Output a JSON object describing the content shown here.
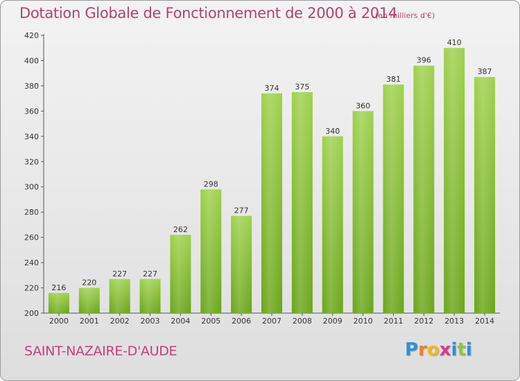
{
  "header": {
    "title": "Dotation Globale de Fonctionnement de 2000 à 2014",
    "subtitle": "(en milliers d'€)"
  },
  "footer": {
    "commune": "SAINT-NAZAIRE-D'AUDE",
    "logo_letters": [
      "P",
      "r",
      "o",
      "x",
      "i",
      "t",
      "i"
    ],
    "logo_colors": [
      "#2e8fd6",
      "#e9822b",
      "#f0b81f",
      "#d93a8e",
      "#2e8fd6",
      "#8cc63f",
      "#2e8fd6"
    ]
  },
  "chart_data": {
    "type": "bar",
    "title": "Dotation Globale de Fonctionnement de 2000 à 2014",
    "subtitle": "(en milliers d'€)",
    "categories": [
      "2000",
      "2001",
      "2002",
      "2003",
      "2004",
      "2005",
      "2006",
      "2007",
      "2008",
      "2009",
      "2010",
      "2011",
      "2012",
      "2013",
      "2014"
    ],
    "values": [
      216,
      220,
      227,
      227,
      262,
      298,
      277,
      374,
      375,
      340,
      360,
      381,
      396,
      410,
      387
    ],
    "ylim": [
      200,
      420
    ],
    "yticks": [
      200,
      220,
      240,
      260,
      280,
      300,
      320,
      340,
      360,
      380,
      400,
      420
    ],
    "grid": false,
    "bar_color_light": "#9fd14d",
    "bar_color_dark": "#6aa51a"
  }
}
